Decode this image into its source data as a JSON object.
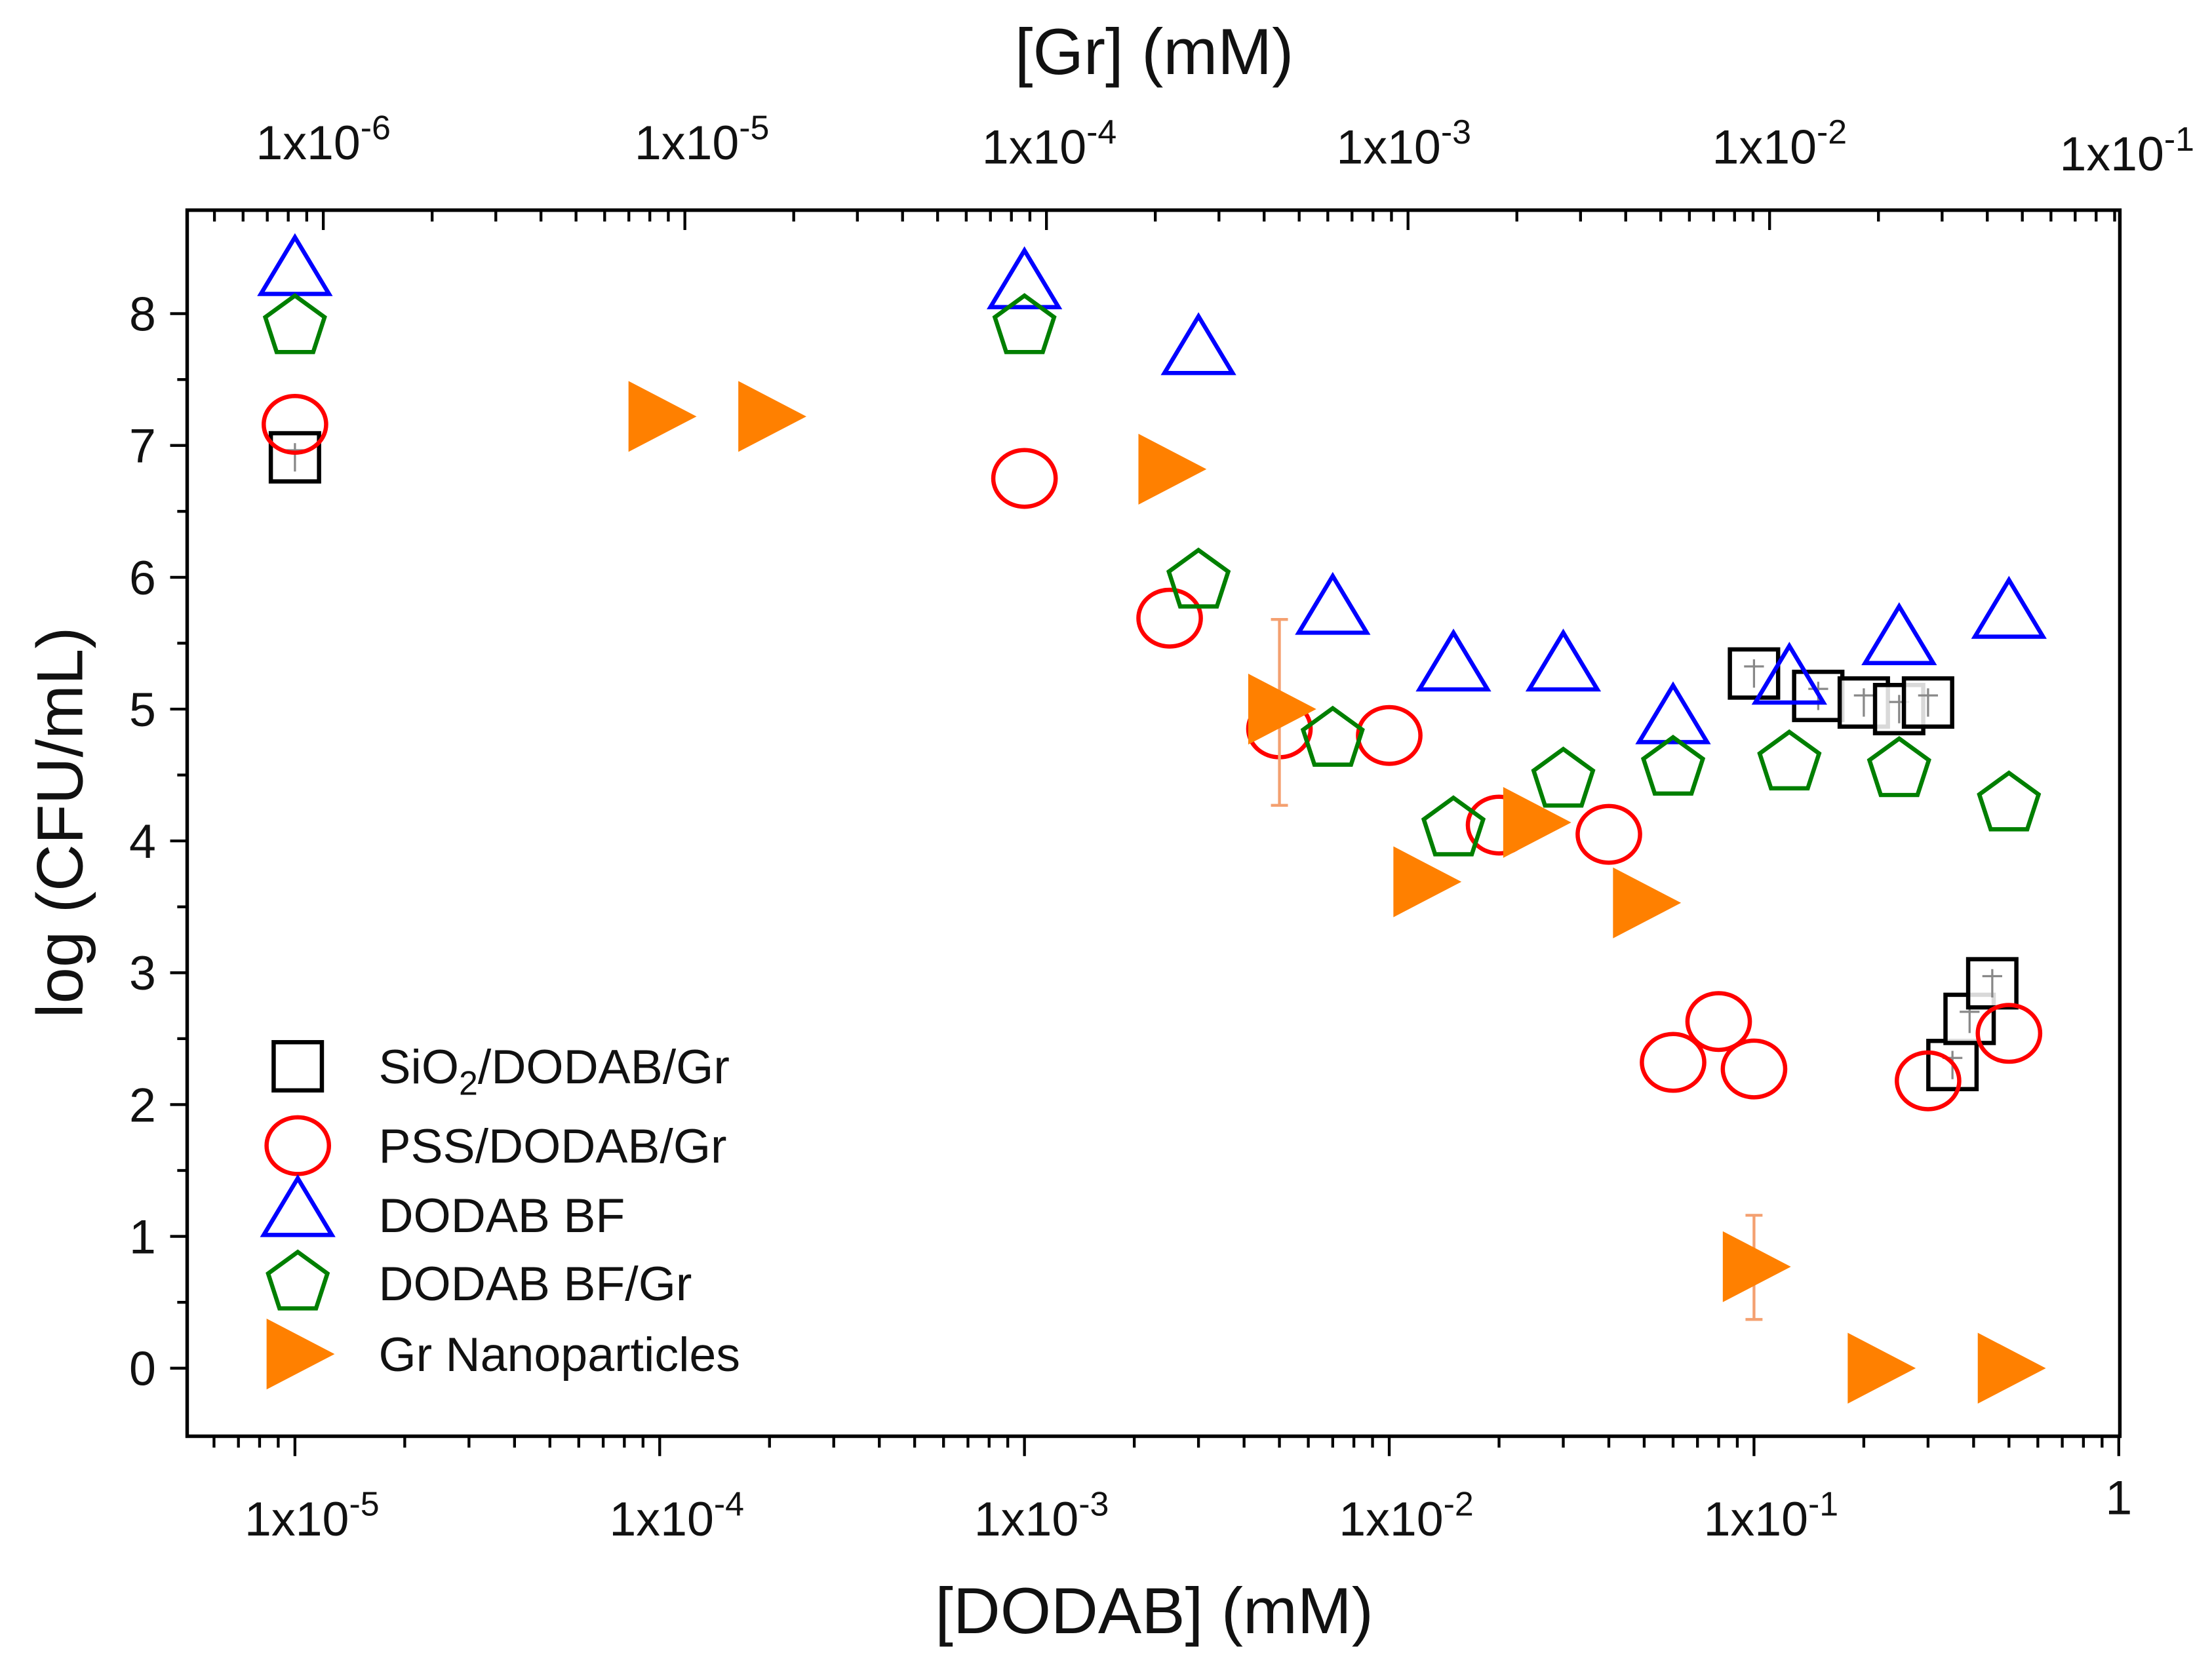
{
  "chart_data": {
    "type": "scatter",
    "title": "",
    "xlabel": "[DODAB] (mM)",
    "x2label": "[Gr] (mM)",
    "ylabel": "log (CFU/mL)",
    "xscale": "log",
    "xlim": [
      5e-06,
      1
    ],
    "ylim": [
      -0.5,
      8.8
    ],
    "x_ticks": [
      {
        "value": 1e-05,
        "base": "1x10",
        "exp": "-5"
      },
      {
        "value": 0.0001,
        "base": "1x10",
        "exp": "-4"
      },
      {
        "value": 0.001,
        "base": "1x10",
        "exp": "-3"
      },
      {
        "value": 0.01,
        "base": "1x10",
        "exp": "-2"
      },
      {
        "value": 0.1,
        "base": "1x10",
        "exp": "-1"
      },
      {
        "value": 1,
        "base": "1",
        "exp": ""
      }
    ],
    "x2_ticks": [
      {
        "base": "1x10",
        "exp": "-6"
      },
      {
        "base": "1x10",
        "exp": "-5"
      },
      {
        "base": "1x10",
        "exp": "-4"
      },
      {
        "base": "1x10",
        "exp": "-3"
      },
      {
        "base": "1x10",
        "exp": "-2"
      },
      {
        "base": "1x10",
        "exp": "-1"
      }
    ],
    "y_ticks": [
      "0",
      "1",
      "2",
      "3",
      "4",
      "5",
      "6",
      "7",
      "8"
    ],
    "legend_position": "bottom-left",
    "series": [
      {
        "name": "SiO2/DODAB/Gr",
        "name_main": "SiO",
        "name_sub": "2",
        "name_rest": "/DODAB/Gr",
        "marker": "square",
        "color": "#000000",
        "points": [
          [
            1e-05,
            6.91
          ],
          [
            0.1,
            5.27
          ],
          [
            0.15,
            5.1
          ],
          [
            0.2,
            5.05
          ],
          [
            0.25,
            5.0
          ],
          [
            0.3,
            5.05
          ],
          [
            0.35,
            2.3
          ],
          [
            0.39,
            2.65
          ],
          [
            0.45,
            2.92
          ]
        ]
      },
      {
        "name": "PSS/DODAB/Gr",
        "marker": "circle",
        "color": "#ff0000",
        "points": [
          [
            1e-05,
            7.16
          ],
          [
            0.001,
            6.75
          ],
          [
            0.0025,
            5.69
          ],
          [
            0.005,
            4.85
          ],
          [
            0.01,
            4.8
          ],
          [
            0.02,
            4.12
          ],
          [
            0.04,
            4.05
          ],
          [
            0.06,
            2.32
          ],
          [
            0.08,
            2.63
          ],
          [
            0.1,
            2.27
          ],
          [
            0.3,
            2.18
          ],
          [
            0.5,
            2.54
          ]
        ]
      },
      {
        "name": "DODAB BF",
        "marker": "triangle-up",
        "color": "#0000ff",
        "points": [
          [
            1e-05,
            8.3
          ],
          [
            0.001,
            8.2
          ],
          [
            0.003,
            7.7
          ],
          [
            0.007,
            5.73
          ],
          [
            0.015,
            5.3
          ],
          [
            0.03,
            5.3
          ],
          [
            0.06,
            4.9
          ],
          [
            0.125,
            5.2
          ],
          [
            0.25,
            5.5
          ],
          [
            0.5,
            5.7
          ]
        ]
      },
      {
        "name": "DODAB BF/Gr",
        "marker": "pentagon",
        "color": "#007f00",
        "points": [
          [
            1e-05,
            7.9
          ],
          [
            0.001,
            7.9
          ],
          [
            0.003,
            5.97
          ],
          [
            0.007,
            4.77
          ],
          [
            0.015,
            4.09
          ],
          [
            0.03,
            4.46
          ],
          [
            0.06,
            4.55
          ],
          [
            0.125,
            4.59
          ],
          [
            0.25,
            4.54
          ],
          [
            0.5,
            4.28
          ]
        ]
      },
      {
        "name": "Gr Nanoparticles",
        "marker": "triangle-right",
        "color": "#ff8000",
        "points": [
          [
            0.0001,
            7.22
          ],
          [
            0.0002,
            7.22
          ],
          [
            0.0025,
            6.82
          ],
          [
            0.005,
            5.0
          ],
          [
            0.0125,
            3.69
          ],
          [
            0.025,
            4.14
          ],
          [
            0.05,
            3.53
          ],
          [
            0.1,
            0.77
          ],
          [
            0.22,
            0.0
          ],
          [
            0.5,
            0.0
          ]
        ],
        "errors": [
          [
            0.005,
            4.27,
            5.68
          ],
          [
            0.1,
            0.37,
            1.16
          ]
        ]
      }
    ]
  }
}
